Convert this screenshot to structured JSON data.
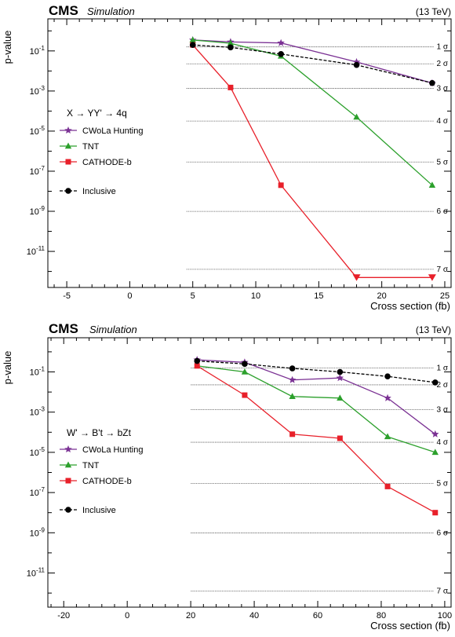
{
  "colors": {
    "cwola": "#7b3294",
    "tnt": "#2ca02c",
    "cathode": "#e8202a",
    "inclusive": "#000000",
    "sigline": "#555555"
  },
  "chart_data": [
    {
      "type": "line",
      "experiment": "CMS",
      "subtitle": "Simulation",
      "energy": "(13 TeV)",
      "xlabel": "Cross section (fb)",
      "ylabel": "p-value",
      "xlim": [
        -6.5,
        25.5
      ],
      "ylim_exp": [
        -12.8,
        0.6
      ],
      "y_scale": "log",
      "xticks": [
        -5,
        0,
        5,
        10,
        15,
        20,
        25
      ],
      "yticks": [
        "10^-1",
        "10^-3",
        "10^-5",
        "10^-7",
        "10^-9",
        "10^-11"
      ],
      "yticks_exp": [
        -1,
        -3,
        -5,
        -7,
        -9,
        -11
      ],
      "signal_label": "X → YY' → 4q",
      "significance_lines": [
        "1 σ",
        "2 σ",
        "3 σ",
        "4 σ",
        "5 σ",
        "6 σ",
        "7 σ"
      ],
      "significance_pvalues": [
        0.159,
        0.0228,
        0.00135,
        3.17e-05,
        2.87e-07,
        9.87e-10,
        1.28e-12
      ],
      "legend_position": "middle-left",
      "series": [
        {
          "name": "CWoLa Hunting",
          "key": "cwola",
          "marker": "star",
          "x": [
            5,
            8,
            12,
            18,
            24
          ],
          "y": [
            0.35,
            0.28,
            0.25,
            0.028,
            0.0025
          ]
        },
        {
          "name": "TNT",
          "key": "tnt",
          "marker": "triangle-up",
          "x": [
            5,
            8,
            12,
            18,
            24
          ],
          "y": [
            0.35,
            0.24,
            0.055,
            5e-05,
            2e-08
          ]
        },
        {
          "name": "CATHODE-b",
          "key": "cathode",
          "marker": "square",
          "x": [
            5,
            8,
            12,
            18,
            24
          ],
          "y": [
            0.2,
            0.0015,
            2e-08,
            5e-13,
            5e-13
          ],
          "upper_limits_at": [
            18,
            24
          ]
        },
        {
          "name": "Inclusive",
          "key": "inclusive",
          "marker": "circle",
          "dashed": true,
          "x": [
            5,
            8,
            12,
            18,
            24
          ],
          "y": [
            0.2,
            0.15,
            0.07,
            0.02,
            0.0025
          ]
        }
      ]
    },
    {
      "type": "line",
      "experiment": "CMS",
      "subtitle": "Simulation",
      "energy": "(13 TeV)",
      "xlabel": "Cross section (fb)",
      "ylabel": "p-value",
      "xlim": [
        -25,
        102
      ],
      "ylim_exp": [
        -12.7,
        0.7
      ],
      "y_scale": "log",
      "xticks": [
        -20,
        0,
        20,
        40,
        60,
        80,
        100
      ],
      "yticks": [
        "10^-1",
        "10^-3",
        "10^-5",
        "10^-7",
        "10^-9",
        "10^-11"
      ],
      "yticks_exp": [
        -1,
        -3,
        -5,
        -7,
        -9,
        -11
      ],
      "signal_label": "W' → B't → bZt",
      "significance_lines": [
        "1 σ",
        "2 σ",
        "3 σ",
        "4 σ",
        "5 σ",
        "6 σ",
        "7 σ"
      ],
      "significance_pvalues": [
        0.159,
        0.0228,
        0.00135,
        3.17e-05,
        2.87e-07,
        9.87e-10,
        1.28e-12
      ],
      "legend_position": "middle-left",
      "series": [
        {
          "name": "CWoLa Hunting",
          "key": "cwola",
          "marker": "star",
          "x": [
            22,
            37,
            52,
            67,
            82,
            97
          ],
          "y": [
            0.4,
            0.3,
            0.04,
            0.05,
            0.005,
            8e-05
          ]
        },
        {
          "name": "TNT",
          "key": "tnt",
          "marker": "triangle-up",
          "x": [
            22,
            37,
            52,
            67,
            82,
            97
          ],
          "y": [
            0.2,
            0.1,
            0.006,
            0.005,
            6e-05,
            1e-05
          ]
        },
        {
          "name": "CATHODE-b",
          "key": "cathode",
          "marker": "square",
          "x": [
            22,
            37,
            52,
            67,
            82,
            97
          ],
          "y": [
            0.2,
            0.007,
            8e-05,
            5e-05,
            2e-07,
            1e-08
          ]
        },
        {
          "name": "Inclusive",
          "key": "inclusive",
          "marker": "circle",
          "dashed": true,
          "x": [
            22,
            37,
            52,
            67,
            82,
            97
          ],
          "y": [
            0.35,
            0.25,
            0.15,
            0.1,
            0.06,
            0.03
          ]
        }
      ]
    }
  ]
}
